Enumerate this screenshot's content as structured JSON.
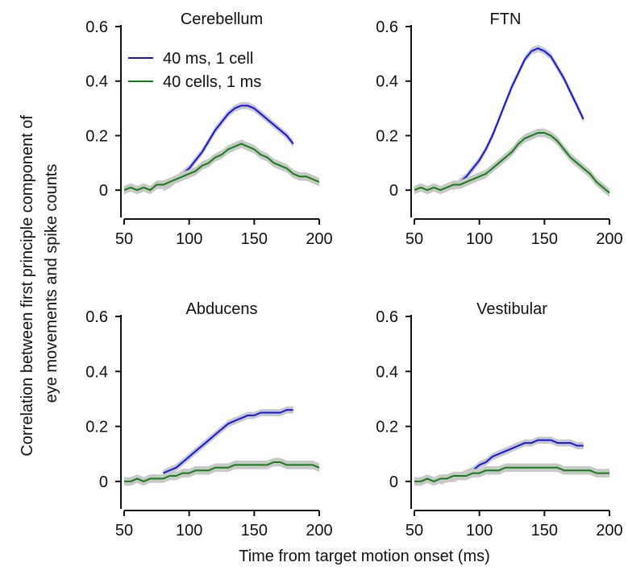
{
  "figure": {
    "ylabel_line1": "Correlation between first principle component of",
    "ylabel_line2": "eye movements and spike counts",
    "xlabel": "Time from target motion onset (ms)"
  },
  "legend": {
    "items": [
      {
        "label": "40 ms, 1 cell",
        "color": "#1414e6"
      },
      {
        "label": "40 cells, 1 ms",
        "color": "#138013"
      }
    ]
  },
  "colors": {
    "band": "#c8c8c8",
    "axis": "#111111"
  },
  "chart_data": [
    {
      "type": "line",
      "title": "Cerebellum",
      "xlim": [
        50,
        200
      ],
      "ylim": [
        -0.1,
        0.6
      ],
      "xticks": [
        50,
        100,
        150,
        200
      ],
      "yticks": [
        0,
        0.2,
        0.4,
        0.6
      ],
      "xticklabels": [
        "50",
        "100",
        "150",
        "200"
      ],
      "yticklabels": [
        "0",
        "0.2",
        "0.4",
        "0.6"
      ],
      "grid": false,
      "legend_position": "top-left",
      "series": [
        {
          "name": "40 ms, 1 cell",
          "color": "#1414e6",
          "band": true,
          "x": [
            80,
            85,
            90,
            95,
            100,
            105,
            110,
            115,
            120,
            125,
            130,
            135,
            140,
            145,
            150,
            155,
            160,
            165,
            170,
            175,
            180
          ],
          "y": [
            0.01,
            0.02,
            0.04,
            0.06,
            0.08,
            0.11,
            0.14,
            0.18,
            0.22,
            0.25,
            0.28,
            0.3,
            0.31,
            0.31,
            0.3,
            0.28,
            0.26,
            0.24,
            0.22,
            0.2,
            0.17
          ]
        },
        {
          "name": "40 cells, 1 ms",
          "color": "#138013",
          "band": true,
          "x": [
            50,
            55,
            60,
            65,
            70,
            75,
            80,
            85,
            90,
            95,
            100,
            105,
            110,
            115,
            120,
            125,
            130,
            135,
            140,
            145,
            150,
            155,
            160,
            165,
            170,
            175,
            180,
            185,
            190,
            195,
            200
          ],
          "y": [
            0.0,
            0.01,
            0.0,
            0.01,
            0.0,
            0.02,
            0.02,
            0.03,
            0.04,
            0.05,
            0.06,
            0.07,
            0.09,
            0.1,
            0.12,
            0.13,
            0.15,
            0.16,
            0.17,
            0.16,
            0.15,
            0.13,
            0.12,
            0.1,
            0.09,
            0.08,
            0.06,
            0.05,
            0.05,
            0.04,
            0.03
          ]
        }
      ]
    },
    {
      "type": "line",
      "title": "FTN",
      "xlim": [
        50,
        200
      ],
      "ylim": [
        -0.1,
        0.6
      ],
      "xticks": [
        50,
        100,
        150,
        200
      ],
      "yticks": [
        0,
        0.2,
        0.4,
        0.6
      ],
      "xticklabels": [
        "50",
        "100",
        "150",
        "200"
      ],
      "yticklabels": [
        "0",
        "0.2",
        "0.4",
        "0.6"
      ],
      "grid": false,
      "series": [
        {
          "name": "40 ms, 1 cell",
          "color": "#1414e6",
          "band": true,
          "x": [
            80,
            85,
            90,
            95,
            100,
            105,
            110,
            115,
            120,
            125,
            130,
            135,
            140,
            145,
            150,
            155,
            160,
            165,
            170,
            175,
            180
          ],
          "y": [
            0.01,
            0.03,
            0.05,
            0.08,
            0.11,
            0.15,
            0.2,
            0.26,
            0.32,
            0.38,
            0.43,
            0.48,
            0.51,
            0.52,
            0.51,
            0.49,
            0.45,
            0.41,
            0.36,
            0.31,
            0.26
          ]
        },
        {
          "name": "40 cells, 1 ms",
          "color": "#138013",
          "band": true,
          "x": [
            50,
            55,
            60,
            65,
            70,
            75,
            80,
            85,
            90,
            95,
            100,
            105,
            110,
            115,
            120,
            125,
            130,
            135,
            140,
            145,
            150,
            155,
            160,
            165,
            170,
            175,
            180,
            185,
            190,
            195,
            200
          ],
          "y": [
            0.0,
            0.01,
            0.0,
            0.01,
            0.0,
            0.01,
            0.02,
            0.02,
            0.03,
            0.04,
            0.05,
            0.06,
            0.08,
            0.1,
            0.12,
            0.14,
            0.17,
            0.19,
            0.2,
            0.21,
            0.21,
            0.2,
            0.18,
            0.15,
            0.12,
            0.1,
            0.08,
            0.06,
            0.03,
            0.01,
            -0.01
          ]
        }
      ]
    },
    {
      "type": "line",
      "title": "Abducens",
      "xlim": [
        50,
        200
      ],
      "ylim": [
        -0.1,
        0.6
      ],
      "xticks": [
        50,
        100,
        150,
        200
      ],
      "yticks": [
        0,
        0.2,
        0.4,
        0.6
      ],
      "xticklabels": [
        "50",
        "100",
        "150",
        "200"
      ],
      "yticklabels": [
        "0",
        "0.2",
        "0.4",
        "0.6"
      ],
      "grid": false,
      "series": [
        {
          "name": "40 ms, 1 cell",
          "color": "#1414e6",
          "band": true,
          "x": [
            80,
            85,
            90,
            95,
            100,
            105,
            110,
            115,
            120,
            125,
            130,
            135,
            140,
            145,
            150,
            155,
            160,
            165,
            170,
            175,
            180
          ],
          "y": [
            0.03,
            0.04,
            0.05,
            0.07,
            0.09,
            0.11,
            0.13,
            0.15,
            0.17,
            0.19,
            0.21,
            0.22,
            0.23,
            0.24,
            0.24,
            0.25,
            0.25,
            0.25,
            0.25,
            0.26,
            0.26
          ]
        },
        {
          "name": "40 cells, 1 ms",
          "color": "#138013",
          "band": true,
          "x": [
            50,
            55,
            60,
            65,
            70,
            75,
            80,
            85,
            90,
            95,
            100,
            105,
            110,
            115,
            120,
            125,
            130,
            135,
            140,
            145,
            150,
            155,
            160,
            165,
            170,
            175,
            180,
            185,
            190,
            195,
            200
          ],
          "y": [
            0.0,
            0.0,
            0.01,
            0.0,
            0.01,
            0.01,
            0.01,
            0.02,
            0.02,
            0.03,
            0.03,
            0.04,
            0.04,
            0.04,
            0.05,
            0.05,
            0.05,
            0.06,
            0.06,
            0.06,
            0.06,
            0.06,
            0.06,
            0.07,
            0.07,
            0.06,
            0.06,
            0.06,
            0.06,
            0.06,
            0.05
          ]
        }
      ]
    },
    {
      "type": "line",
      "title": "Vestibular",
      "xlim": [
        50,
        200
      ],
      "ylim": [
        -0.1,
        0.6
      ],
      "xticks": [
        50,
        100,
        150,
        200
      ],
      "yticks": [
        0,
        0.2,
        0.4,
        0.6
      ],
      "xticklabels": [
        "50",
        "100",
        "150",
        "200"
      ],
      "yticklabels": [
        "0",
        "0.2",
        "0.4",
        "0.6"
      ],
      "grid": false,
      "series": [
        {
          "name": "40 ms, 1 cell",
          "color": "#1414e6",
          "band": true,
          "x": [
            70,
            75,
            80,
            85,
            90,
            95,
            100,
            105,
            110,
            115,
            120,
            125,
            130,
            135,
            140,
            145,
            150,
            155,
            160,
            165,
            170,
            175,
            180
          ],
          "y": [
            0.0,
            0.01,
            0.01,
            0.02,
            0.03,
            0.04,
            0.06,
            0.07,
            0.09,
            0.1,
            0.11,
            0.12,
            0.13,
            0.14,
            0.14,
            0.15,
            0.15,
            0.15,
            0.14,
            0.14,
            0.14,
            0.13,
            0.13
          ]
        },
        {
          "name": "40 cells, 1 ms",
          "color": "#138013",
          "band": true,
          "x": [
            50,
            55,
            60,
            65,
            70,
            75,
            80,
            85,
            90,
            95,
            100,
            105,
            110,
            115,
            120,
            125,
            130,
            135,
            140,
            145,
            150,
            155,
            160,
            165,
            170,
            175,
            180,
            185,
            190,
            195,
            200
          ],
          "y": [
            0.0,
            0.0,
            0.01,
            0.0,
            0.01,
            0.01,
            0.02,
            0.02,
            0.02,
            0.03,
            0.03,
            0.04,
            0.04,
            0.04,
            0.05,
            0.05,
            0.05,
            0.05,
            0.05,
            0.05,
            0.05,
            0.05,
            0.05,
            0.04,
            0.04,
            0.04,
            0.04,
            0.04,
            0.03,
            0.03,
            0.03
          ]
        }
      ]
    }
  ]
}
